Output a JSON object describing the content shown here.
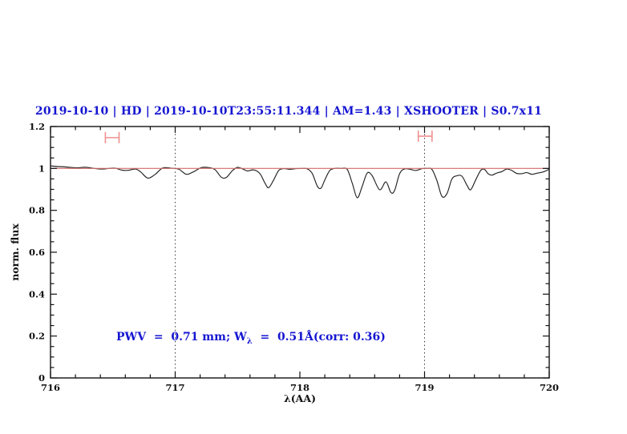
{
  "title": {
    "text": "2019-10-10 | HD | 2019-10-10T23:55:11.344 | AM=1.43 | XSHOOTER | S0.7x11",
    "color": "#1616d1"
  },
  "annotation": {
    "prefix": "PWV  =  0.71 mm; W",
    "subscript": "λ",
    "suffix": "  =  0.51Å(corr: 0.36)",
    "color": "#1616d1"
  },
  "chart_data": {
    "type": "line",
    "title": "2019-10-10 | HD | 2019-10-10T23:55:11.344 | AM=1.43 | XSHOOTER | S0.7x11",
    "xlabel": "λ(AA)",
    "ylabel": "norm. flux",
    "xlim": [
      716,
      720
    ],
    "ylim": [
      0,
      1.2
    ],
    "grid": "off",
    "xticks": {
      "major": [
        716,
        717,
        718,
        719,
        720
      ],
      "labels": [
        "716",
        "717",
        "718",
        "719",
        "720"
      ],
      "minor_step": 0.2
    },
    "yticks": {
      "major": [
        0,
        0.2,
        0.4,
        0.6,
        0.8,
        1.0,
        1.2
      ],
      "labels": [
        "0",
        "0.2",
        "0.4",
        "0.6",
        "0.8",
        "1",
        "1.2"
      ],
      "minor_step": 0.05
    },
    "reference_lines": {
      "continuum_y": 1.0,
      "continuum_color": "#d46a6a",
      "vertical_dotted_x": [
        717,
        719
      ],
      "vertical_dotted_color": "#3a3a3a"
    },
    "markers": [
      {
        "name": "band-marker-left",
        "x1": 716.44,
        "x2": 716.55,
        "y": 1.147,
        "color": "#f09090"
      },
      {
        "name": "band-marker-right",
        "x1": 718.95,
        "x2": 719.06,
        "y": 1.154,
        "color": "#f09090"
      }
    ],
    "series": [
      {
        "name": "normalized-spectrum",
        "color": "#222222",
        "x": [
          716.0,
          716.06,
          716.12,
          716.18,
          716.22,
          716.28,
          716.34,
          716.41,
          716.47,
          716.52,
          716.57,
          716.62,
          716.68,
          716.72,
          716.78,
          716.84,
          716.9,
          716.97,
          717.03,
          717.09,
          717.15,
          717.21,
          717.27,
          717.32,
          717.37,
          717.41,
          717.46,
          717.5,
          717.54,
          717.58,
          717.63,
          717.68,
          717.72,
          717.75,
          717.79,
          717.83,
          717.87,
          717.92,
          717.97,
          718.02,
          718.06,
          718.1,
          718.14,
          718.17,
          718.2,
          718.24,
          718.28,
          718.33,
          718.38,
          718.42,
          718.46,
          718.5,
          718.54,
          718.58,
          718.64,
          718.69,
          718.73,
          718.76,
          718.8,
          718.84,
          718.89,
          718.93,
          718.98,
          719.02,
          719.06,
          719.1,
          719.14,
          719.18,
          719.22,
          719.26,
          719.3,
          719.34,
          719.37,
          719.41,
          719.45,
          719.48,
          719.51,
          719.54,
          719.58,
          719.62,
          719.66,
          719.7,
          719.74,
          719.78,
          719.82,
          719.86,
          719.9,
          719.95,
          720.0
        ],
        "y": [
          1.012,
          1.009,
          1.007,
          1.004,
          1.003,
          1.006,
          1.001,
          0.997,
          1.0,
          1.001,
          0.992,
          0.991,
          0.997,
          0.985,
          0.954,
          0.972,
          1.002,
          1.001,
          0.996,
          0.972,
          0.985,
          1.004,
          1.004,
          0.994,
          0.958,
          0.957,
          0.99,
          1.005,
          0.998,
          0.988,
          0.993,
          0.975,
          0.93,
          0.908,
          0.945,
          0.99,
          0.999,
          0.996,
          0.999,
          1.0,
          0.998,
          0.975,
          0.915,
          0.906,
          0.945,
          0.99,
          1.0,
          1.0,
          0.995,
          0.93,
          0.86,
          0.915,
          0.978,
          0.965,
          0.898,
          0.936,
          0.885,
          0.895,
          0.975,
          0.998,
          0.995,
          0.99,
          0.999,
          1.0,
          0.995,
          0.94,
          0.866,
          0.88,
          0.95,
          0.965,
          0.963,
          0.92,
          0.898,
          0.945,
          0.99,
          0.996,
          0.975,
          0.968,
          0.978,
          0.985,
          0.997,
          0.99,
          0.976,
          0.975,
          0.98,
          0.972,
          0.977,
          0.983,
          0.996
        ]
      }
    ]
  }
}
